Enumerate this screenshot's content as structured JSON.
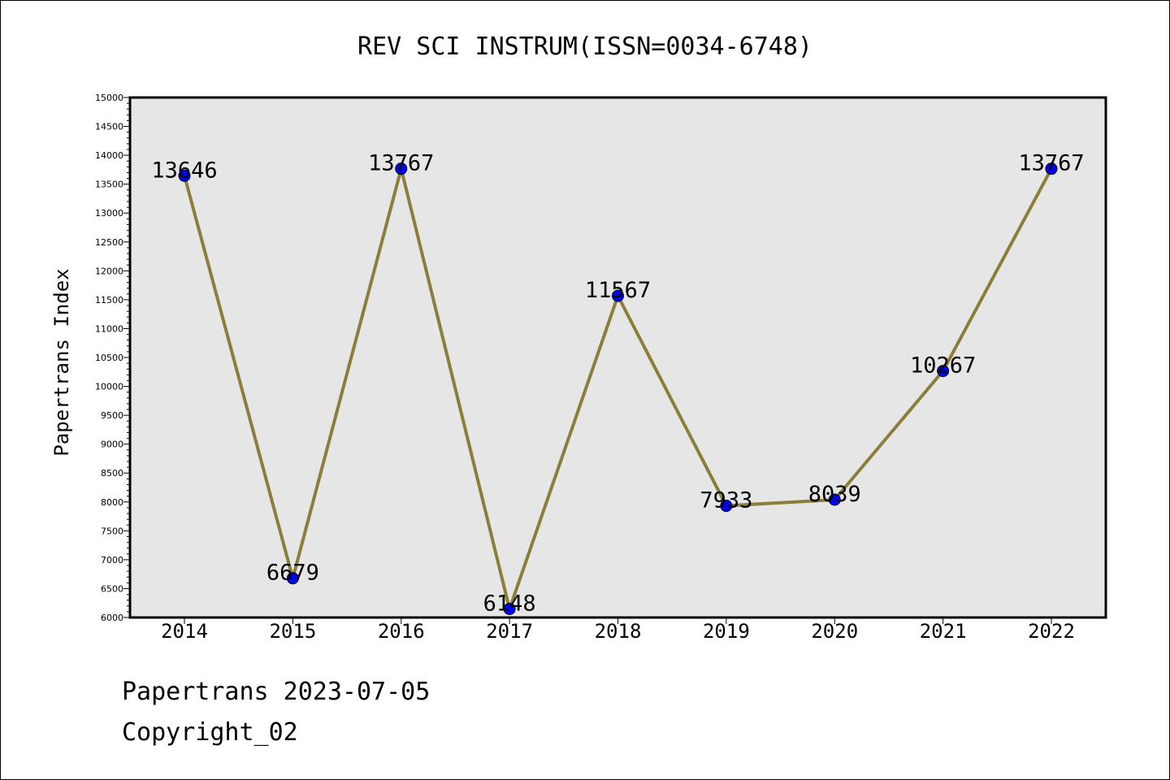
{
  "chart_data": {
    "type": "line",
    "title": "REV SCI INSTRUM(ISSN=0034-6748)",
    "xlabel": "",
    "ylabel": "Papertrans Index",
    "categories": [
      "2014",
      "2015",
      "2016",
      "2017",
      "2018",
      "2019",
      "2020",
      "2021",
      "2022"
    ],
    "series": [
      {
        "values": [
          13646,
          6679,
          13767,
          6148,
          11567,
          7933,
          8039,
          10267,
          13767
        ]
      }
    ],
    "data_labels": [
      "13646",
      "6679",
      "13767",
      "6148",
      "11567",
      "7933",
      "8039",
      "10267",
      "13767"
    ],
    "ylim": [
      6000,
      15000
    ],
    "yticks": [
      6000,
      6500,
      7000,
      7500,
      8000,
      8500,
      9000,
      9500,
      10000,
      10500,
      11000,
      11500,
      12000,
      12500,
      13000,
      13500,
      14000,
      14500,
      15000
    ],
    "grid": false,
    "legend": "none",
    "colors": {
      "line": "#8B7D3A",
      "marker": "#0000FF",
      "marker_edge": "#000000",
      "plot_bg": "#E6E6E6"
    }
  },
  "footer": {
    "date_line": "Papertrans 2023-07-05",
    "copyright_line": "Copyright_02"
  }
}
